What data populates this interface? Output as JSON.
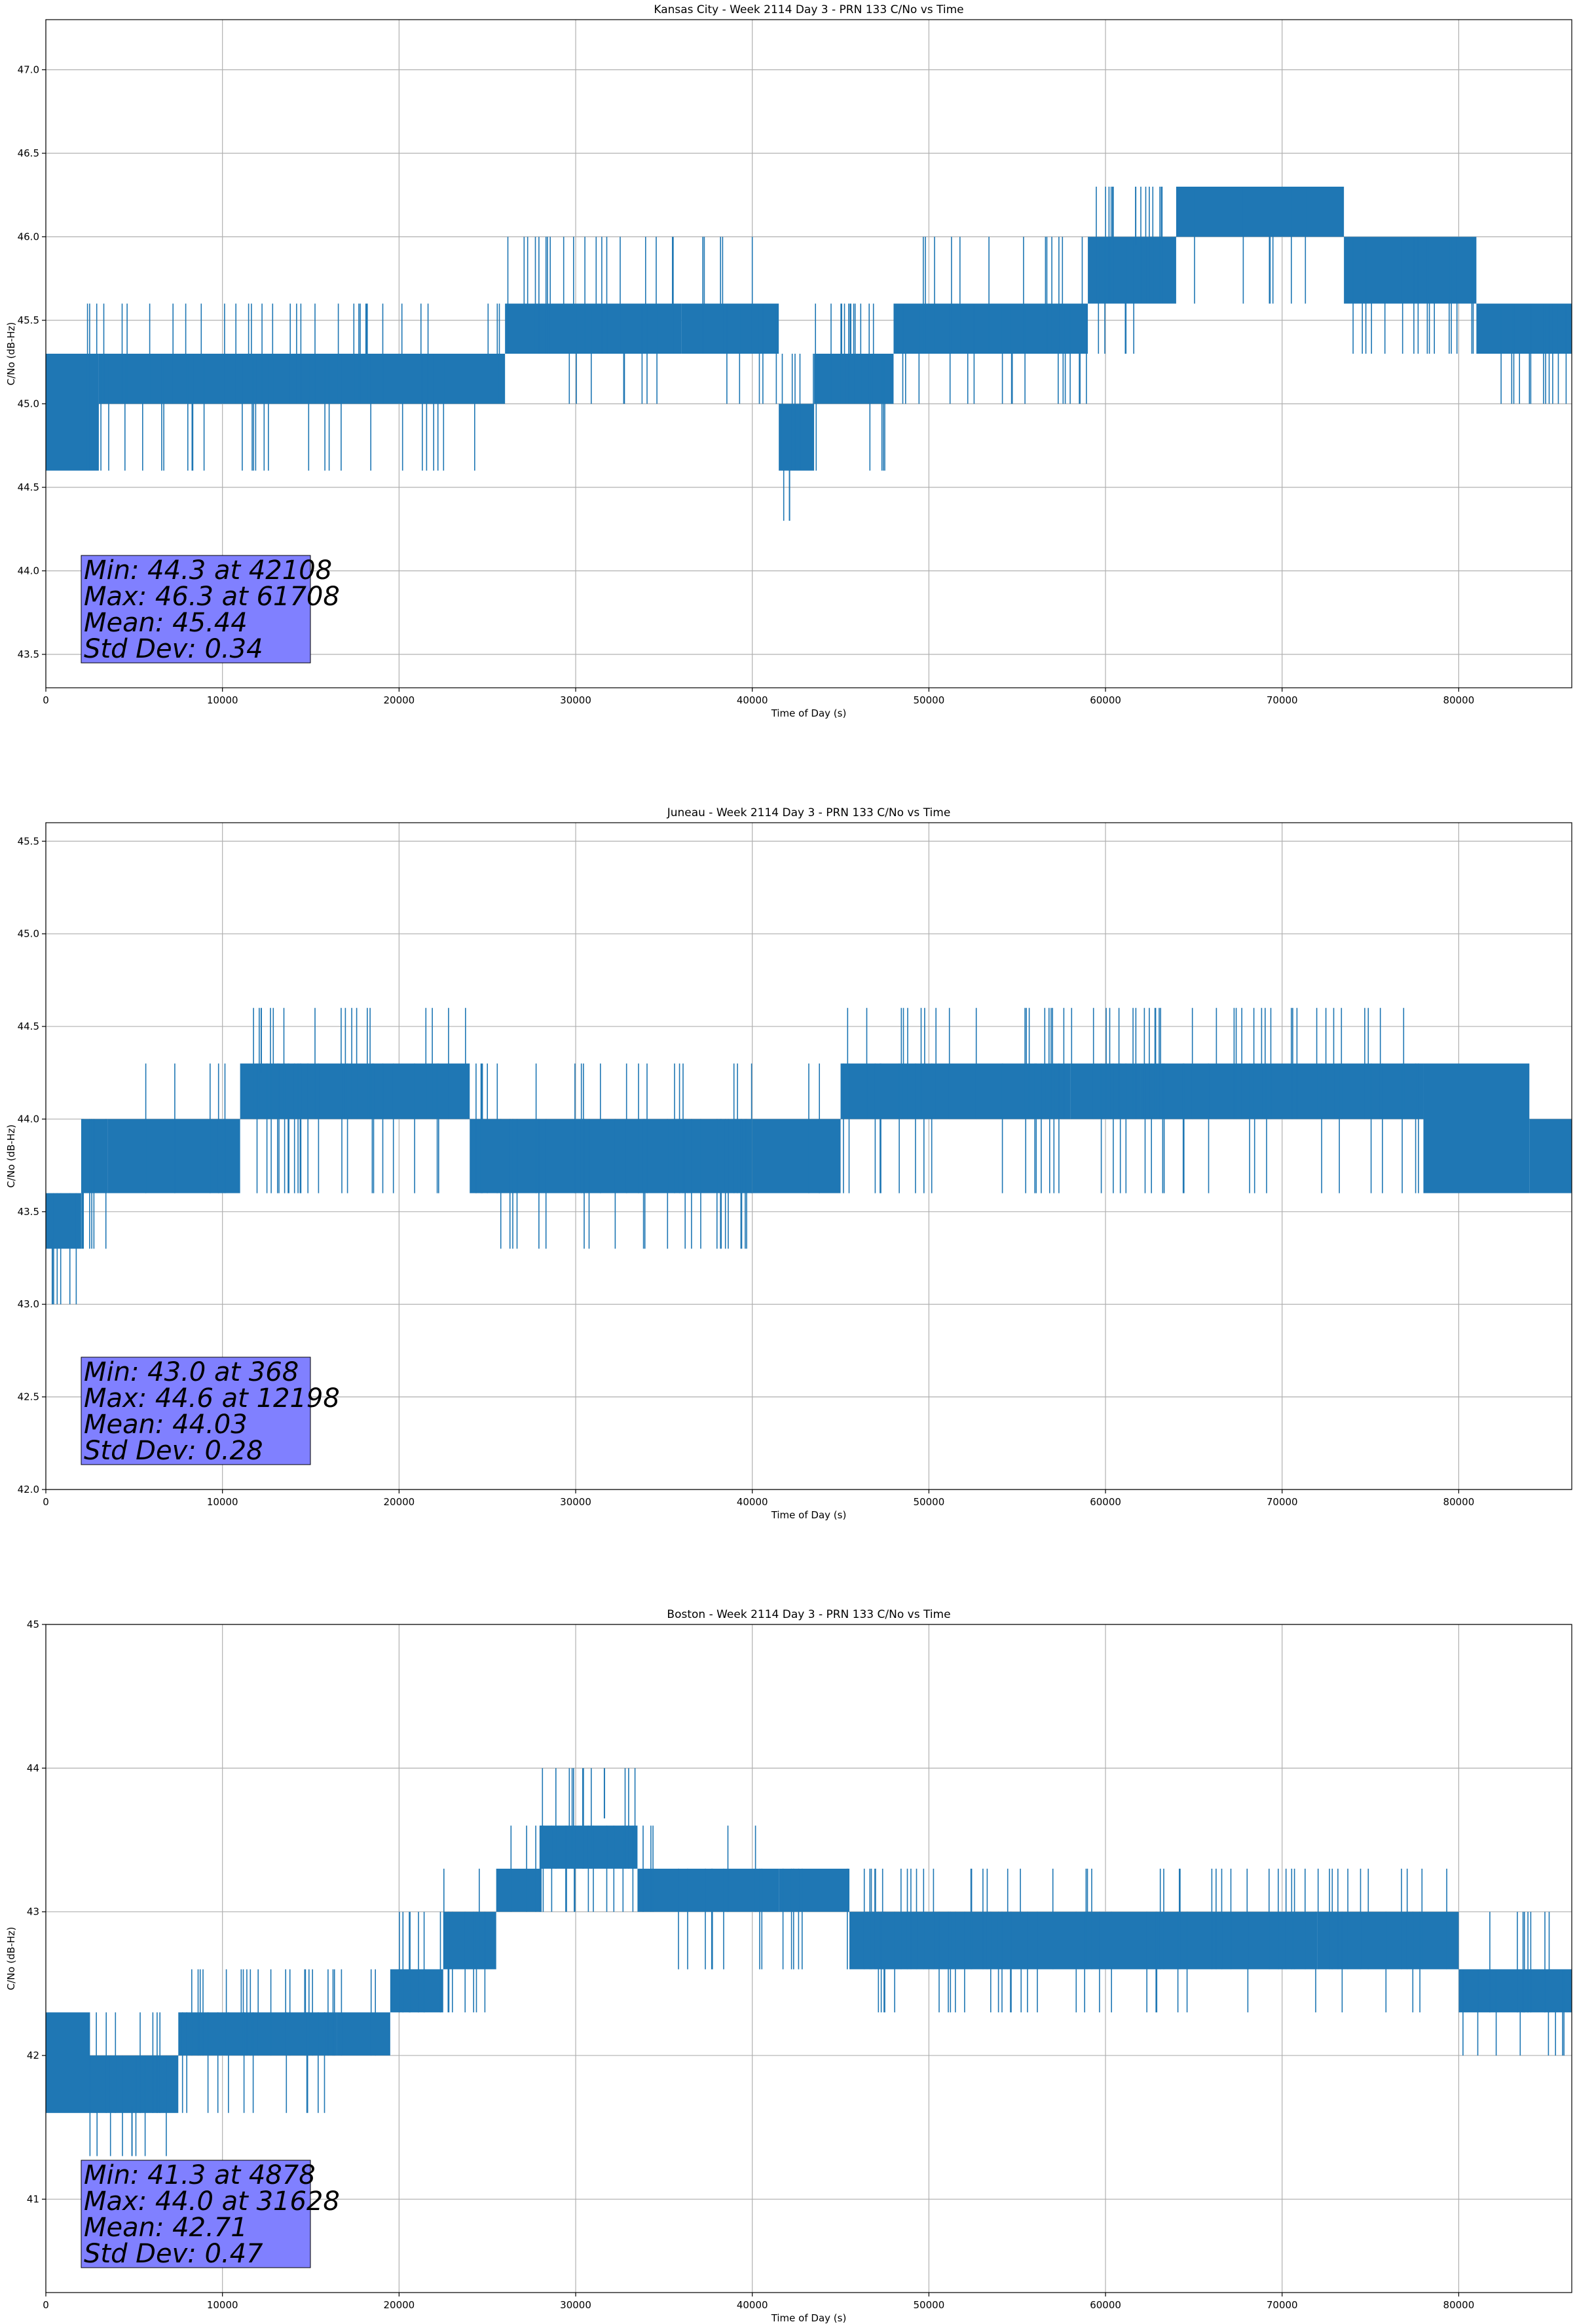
{
  "figure": {
    "background": "#ffffff",
    "line_color": "#1f77b4",
    "grid_color": "#b0b0b0",
    "stats_box_color": "#8080ff"
  },
  "chart_data": [
    {
      "type": "line",
      "title": "Kansas City - Week 2114 Day 3 - PRN 133 C/No vs Time",
      "xlabel": "Time of Day (s)",
      "ylabel": "C/No (dB-Hz)",
      "xlim": [
        0,
        86400
      ],
      "ylim": [
        43.3,
        47.3
      ],
      "xticks": [
        0,
        10000,
        20000,
        30000,
        40000,
        50000,
        60000,
        70000,
        80000
      ],
      "xtick_labels": [
        "0",
        "10000",
        "20000",
        "30000",
        "40000",
        "50000",
        "60000",
        "70000",
        "80000"
      ],
      "yticks": [
        43.5,
        44.0,
        44.5,
        45.0,
        45.5,
        46.0,
        46.5,
        47.0
      ],
      "ytick_labels": [
        "43.5",
        "44.0",
        "44.5",
        "45.0",
        "45.5",
        "46.0",
        "46.5",
        "47.0"
      ],
      "grid": true,
      "series": [
        {
          "values_band": [
            {
              "x": [
                0,
                3000
              ],
              "low": 44.6,
              "high": 45.3,
              "spikes": [
                45.6
              ],
              "dips": []
            },
            {
              "x": [
                3000,
                26000
              ],
              "low": 45.0,
              "high": 45.3,
              "spikes": [
                45.6
              ],
              "dips": [
                44.6
              ]
            },
            {
              "x": [
                26000,
                36000
              ],
              "low": 45.3,
              "high": 45.6,
              "spikes": [
                46.0
              ],
              "dips": [
                45.0
              ]
            },
            {
              "x": [
                36000,
                41500
              ],
              "low": 45.3,
              "high": 45.6,
              "spikes": [
                46.0
              ],
              "dips": [
                45.0
              ]
            },
            {
              "x": [
                41500,
                43500
              ],
              "low": 44.6,
              "high": 45.0,
              "spikes": [
                45.3
              ],
              "dips": [
                44.3
              ]
            },
            {
              "x": [
                43500,
                48000
              ],
              "low": 45.0,
              "high": 45.3,
              "spikes": [
                45.6
              ],
              "dips": [
                44.6
              ]
            },
            {
              "x": [
                48000,
                59000
              ],
              "low": 45.3,
              "high": 45.6,
              "spikes": [
                46.0
              ],
              "dips": [
                45.0
              ]
            },
            {
              "x": [
                59000,
                62000
              ],
              "low": 45.6,
              "high": 46.0,
              "spikes": [
                46.3
              ],
              "dips": [
                45.3
              ]
            },
            {
              "x": [
                62000,
                64000
              ],
              "low": 45.6,
              "high": 46.0,
              "spikes": [
                46.3
              ],
              "dips": [
                45.3
              ]
            },
            {
              "x": [
                64000,
                73500
              ],
              "low": 46.0,
              "high": 46.3,
              "spikes": [],
              "dips": [
                45.6
              ]
            },
            {
              "x": [
                73500,
                81000
              ],
              "low": 45.6,
              "high": 46.0,
              "spikes": [],
              "dips": [
                45.3
              ]
            },
            {
              "x": [
                81000,
                86400
              ],
              "low": 45.3,
              "high": 45.6,
              "spikes": [],
              "dips": [
                45.0
              ]
            }
          ]
        }
      ],
      "stats": {
        "lines": [
          "Min: 44.3 at 42108",
          "Max: 46.3 at 61708",
          "Mean: 45.44",
          "Std Dev: 0.34"
        ],
        "min": 44.3,
        "min_time": 42108,
        "max": 46.3,
        "max_time": 61708,
        "mean": 45.44,
        "std_dev": 0.34
      }
    },
    {
      "type": "line",
      "title": "Juneau - Week 2114 Day 3 - PRN 133 C/No vs Time",
      "xlabel": "Time of Day (s)",
      "ylabel": "C/No (dB-Hz)",
      "xlim": [
        0,
        86400
      ],
      "ylim": [
        42.0,
        45.6
      ],
      "xticks": [
        0,
        10000,
        20000,
        30000,
        40000,
        50000,
        60000,
        70000,
        80000
      ],
      "xtick_labels": [
        "0",
        "10000",
        "20000",
        "30000",
        "40000",
        "50000",
        "60000",
        "70000",
        "80000"
      ],
      "yticks": [
        42.0,
        42.5,
        43.0,
        43.5,
        44.0,
        44.5,
        45.0,
        45.5
      ],
      "ytick_labels": [
        "42.0",
        "42.5",
        "43.0",
        "43.5",
        "44.0",
        "44.5",
        "45.0",
        "45.5"
      ],
      "grid": true,
      "series": [
        {
          "values_band": [
            {
              "x": [
                0,
                2000
              ],
              "low": 43.3,
              "high": 43.6,
              "spikes": [],
              "dips": [
                43.0
              ]
            },
            {
              "x": [
                2000,
                3500
              ],
              "low": 43.6,
              "high": 44.0,
              "spikes": [],
              "dips": [
                43.3
              ]
            },
            {
              "x": [
                3500,
                11000
              ],
              "low": 43.6,
              "high": 44.0,
              "spikes": [
                44.3
              ],
              "dips": []
            },
            {
              "x": [
                11000,
                24000
              ],
              "low": 44.0,
              "high": 44.3,
              "spikes": [
                44.6
              ],
              "dips": [
                43.6
              ]
            },
            {
              "x": [
                24000,
                40000
              ],
              "low": 43.6,
              "high": 44.0,
              "spikes": [
                44.3
              ],
              "dips": [
                43.3
              ]
            },
            {
              "x": [
                40000,
                45000
              ],
              "low": 43.6,
              "high": 44.0,
              "spikes": [
                44.3
              ],
              "dips": []
            },
            {
              "x": [
                45000,
                58000
              ],
              "low": 44.0,
              "high": 44.3,
              "spikes": [
                44.6
              ],
              "dips": [
                43.6
              ]
            },
            {
              "x": [
                58000,
                62000
              ],
              "low": 44.0,
              "high": 44.3,
              "spikes": [
                44.6
              ],
              "dips": [
                43.6
              ]
            },
            {
              "x": [
                62000,
                78000
              ],
              "low": 44.0,
              "high": 44.3,
              "spikes": [
                44.6
              ],
              "dips": [
                43.6
              ]
            },
            {
              "x": [
                78000,
                84000
              ],
              "low": 43.6,
              "high": 44.3,
              "spikes": [],
              "dips": []
            },
            {
              "x": [
                84000,
                86400
              ],
              "low": 43.6,
              "high": 44.0,
              "spikes": [],
              "dips": []
            }
          ]
        }
      ],
      "stats": {
        "lines": [
          "Min: 43.0 at 368",
          "Max: 44.6 at 12198",
          "Mean: 44.03",
          "Std Dev: 0.28"
        ],
        "min": 43.0,
        "min_time": 368,
        "max": 44.6,
        "max_time": 12198,
        "mean": 44.03,
        "std_dev": 0.28
      }
    },
    {
      "type": "line",
      "title": "Boston - Week 2114 Day 3 - PRN 133 C/No vs Time",
      "xlabel": "Time of Day (s)",
      "ylabel": "C/No (dB-Hz)",
      "xlim": [
        0,
        86400
      ],
      "ylim": [
        40.35,
        45.0
      ],
      "xticks": [
        0,
        10000,
        20000,
        30000,
        40000,
        50000,
        60000,
        70000,
        80000
      ],
      "xtick_labels": [
        "0",
        "10000",
        "20000",
        "30000",
        "40000",
        "50000",
        "60000",
        "70000",
        "80000"
      ],
      "yticks": [
        41,
        42,
        43,
        44,
        45
      ],
      "ytick_labels": [
        "41",
        "42",
        "43",
        "44",
        "45"
      ],
      "grid": true,
      "series": [
        {
          "values_band": [
            {
              "x": [
                0,
                2500
              ],
              "low": 41.6,
              "high": 42.3,
              "spikes": [],
              "dips": []
            },
            {
              "x": [
                2500,
                7500
              ],
              "low": 41.6,
              "high": 42.0,
              "spikes": [
                42.3
              ],
              "dips": [
                41.3
              ]
            },
            {
              "x": [
                7500,
                16500
              ],
              "low": 42.0,
              "high": 42.3,
              "spikes": [
                42.6
              ],
              "dips": [
                41.6
              ]
            },
            {
              "x": [
                16500,
                19500
              ],
              "low": 42.0,
              "high": 42.3,
              "spikes": [
                42.6
              ],
              "dips": []
            },
            {
              "x": [
                19500,
                22500
              ],
              "low": 42.3,
              "high": 42.6,
              "spikes": [
                43.0
              ],
              "dips": []
            },
            {
              "x": [
                22500,
                25500
              ],
              "low": 42.6,
              "high": 43.0,
              "spikes": [
                43.3
              ],
              "dips": [
                42.3
              ]
            },
            {
              "x": [
                25500,
                28000
              ],
              "low": 43.0,
              "high": 43.3,
              "spikes": [
                43.6
              ],
              "dips": []
            },
            {
              "x": [
                28000,
                33500
              ],
              "low": 43.3,
              "high": 43.6,
              "spikes": [
                44.0
              ],
              "dips": [
                43.0
              ]
            },
            {
              "x": [
                33500,
                41500
              ],
              "low": 43.0,
              "high": 43.3,
              "spikes": [
                43.6
              ],
              "dips": [
                42.6
              ]
            },
            {
              "x": [
                41500,
                45500
              ],
              "low": 43.0,
              "high": 43.3,
              "spikes": [],
              "dips": [
                42.6
              ]
            },
            {
              "x": [
                45500,
                72000
              ],
              "low": 42.6,
              "high": 43.0,
              "spikes": [
                43.3
              ],
              "dips": [
                42.3
              ]
            },
            {
              "x": [
                72000,
                80000
              ],
              "low": 42.6,
              "high": 43.0,
              "spikes": [
                43.3
              ],
              "dips": [
                42.3
              ]
            },
            {
              "x": [
                80000,
                86400
              ],
              "low": 42.3,
              "high": 42.6,
              "spikes": [
                43.0
              ],
              "dips": [
                42.0
              ]
            }
          ]
        }
      ],
      "stats": {
        "lines": [
          "Min: 41.3 at 4878",
          "Max: 44.0 at 31628",
          "Mean: 42.71",
          "Std Dev: 0.47"
        ],
        "min": 41.3,
        "min_time": 4878,
        "max": 44.0,
        "max_time": 31628,
        "mean": 42.71,
        "std_dev": 0.47
      }
    }
  ]
}
